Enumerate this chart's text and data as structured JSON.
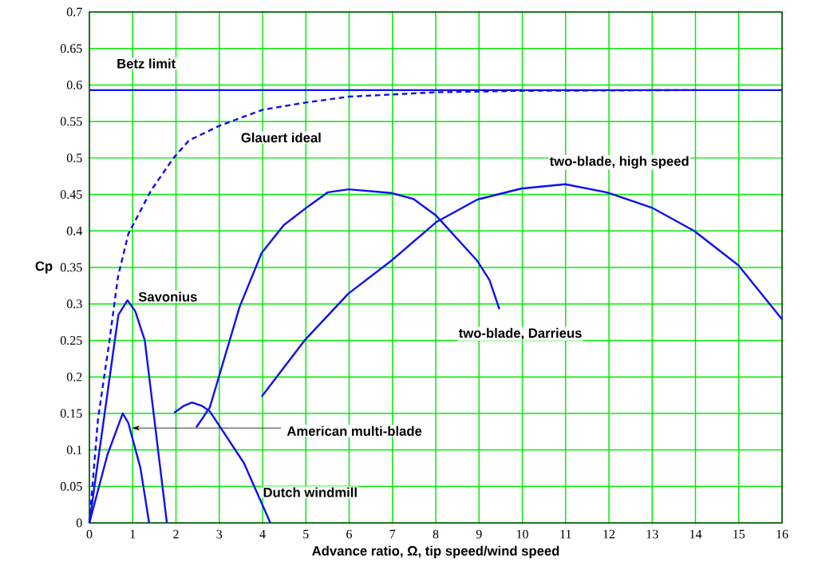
{
  "chart_data": {
    "type": "line",
    "xlabel": "Advance ratio, Ω, tip speed/wind speed",
    "ylabel": "Cp",
    "xlim": [
      0,
      16
    ],
    "ylim": [
      0,
      0.7
    ],
    "xticks": [
      0,
      1,
      2,
      3,
      4,
      5,
      6,
      7,
      8,
      9,
      10,
      11,
      12,
      13,
      14,
      15,
      16
    ],
    "yticks": [
      0,
      0.05,
      0.1,
      0.15,
      0.2,
      0.25,
      0.3,
      0.35,
      0.4,
      0.45,
      0.5,
      0.55,
      0.6,
      0.65,
      0.7
    ],
    "grid": true,
    "marker": "none",
    "ref_lines": [
      {
        "axis": "y",
        "value": 0.593,
        "label": "Betz limit",
        "color": "#1010f0"
      }
    ],
    "series": [
      {
        "name": "Glauert ideal",
        "color": "#1010f0",
        "line_style": "dashed",
        "x": [
          0,
          0.2,
          0.46,
          0.66,
          0.9,
          1.42,
          1.93,
          2.3,
          3.0,
          4.0,
          5.0,
          6.0,
          8.0,
          10.0,
          14.0
        ],
        "values": [
          0,
          0.143,
          0.248,
          0.337,
          0.396,
          0.455,
          0.499,
          0.524,
          0.544,
          0.566,
          0.576,
          0.584,
          0.59,
          0.592,
          0.593
        ]
      },
      {
        "name": "Savonius",
        "color": "#1010f0",
        "x": [
          0,
          0.67,
          0.88,
          1.06,
          1.28,
          1.79
        ],
        "values": [
          0,
          0.285,
          0.305,
          0.29,
          0.25,
          0
        ]
      },
      {
        "name": "American multi-blade",
        "color": "#1010f0",
        "x": [
          0,
          0.42,
          0.77,
          0.9,
          1.18,
          1.38
        ],
        "values": [
          0,
          0.094,
          0.15,
          0.137,
          0.075,
          0
        ]
      },
      {
        "name": "Dutch windmill",
        "color": "#1010f0",
        "x": [
          1.96,
          2.17,
          2.37,
          2.61,
          2.78,
          3.57,
          4.18
        ],
        "values": [
          0.151,
          0.16,
          0.165,
          0.16,
          0.153,
          0.082,
          0
        ]
      },
      {
        "name": "two-blade, Darrieus",
        "color": "#1010f0",
        "x": [
          2.47,
          2.78,
          3.47,
          3.98,
          4.49,
          4.97,
          5.51,
          5.99,
          6.97,
          7.48,
          8.01,
          8.96,
          9.24,
          9.47
        ],
        "values": [
          0.131,
          0.158,
          0.296,
          0.37,
          0.408,
          0.43,
          0.453,
          0.457,
          0.452,
          0.444,
          0.421,
          0.359,
          0.333,
          0.293
        ]
      },
      {
        "name": "two-blade, high speed",
        "color": "#1010f0",
        "x": [
          3.98,
          4.97,
          5.98,
          6.97,
          8.01,
          8.96,
          9.97,
          10.99,
          11.94,
          12.99,
          13.97,
          14.99,
          16.0
        ],
        "values": [
          0.173,
          0.25,
          0.314,
          0.359,
          0.412,
          0.443,
          0.458,
          0.464,
          0.453,
          0.432,
          0.4,
          0.353,
          0.279
        ]
      }
    ]
  }
}
